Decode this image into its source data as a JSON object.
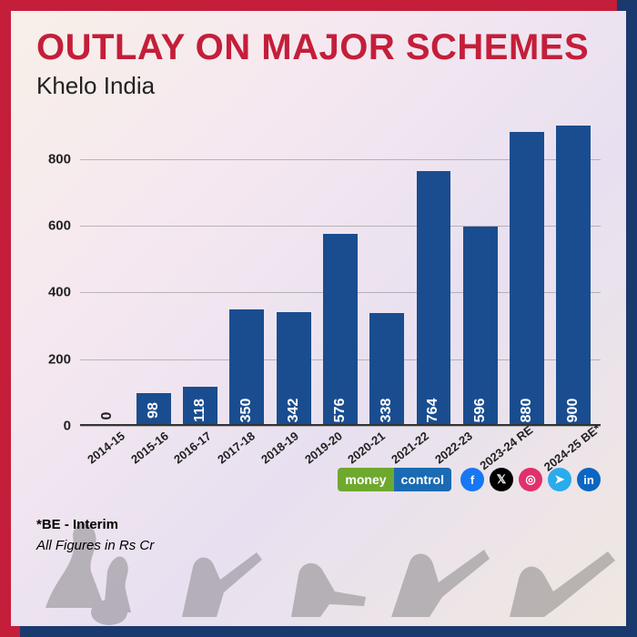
{
  "title": "OUTLAY ON MAJOR SCHEMES",
  "title_color": "#c41e3a",
  "subtitle": "Khelo India",
  "footnote1": "*BE - Interim",
  "footnote2": "All Figures in Rs Cr",
  "chart": {
    "type": "bar",
    "categories": [
      "2014-15",
      "2015-16",
      "2016-17",
      "2017-18",
      "2018-19",
      "2019-20",
      "2020-21",
      "2021-22",
      "2022-23",
      "2023-24 RE",
      "2024-25 BE*"
    ],
    "values": [
      0,
      98,
      118,
      350,
      342,
      576,
      338,
      764,
      596,
      880,
      900
    ],
    "bar_color": "#1a4d8f",
    "grid_color": "#888888",
    "label_fontsize": 16,
    "tick_fontsize": 15,
    "x_fontsize": 13,
    "ylim": [
      0,
      900
    ],
    "yticks": [
      0,
      200,
      400,
      600,
      800
    ],
    "bar_width_pct": 74,
    "background": "transparent"
  },
  "brand": {
    "left_text": "money",
    "right_text": "control",
    "left_bg": "#6fa82e",
    "right_bg": "#1a6bb3"
  },
  "social": [
    {
      "name": "facebook",
      "glyph": "f",
      "bg": "#1877f2"
    },
    {
      "name": "x",
      "glyph": "𝕏",
      "bg": "#000000"
    },
    {
      "name": "instagram",
      "glyph": "◎",
      "bg": "#e1306c"
    },
    {
      "name": "telegram",
      "glyph": "➤",
      "bg": "#2aabee"
    },
    {
      "name": "linkedin",
      "glyph": "in",
      "bg": "#0a66c2"
    }
  ],
  "border_colors": {
    "top": "#c41e3a",
    "left": "#c41e3a",
    "right": "#1a3a6e",
    "bottom": "#1a3a6e"
  }
}
